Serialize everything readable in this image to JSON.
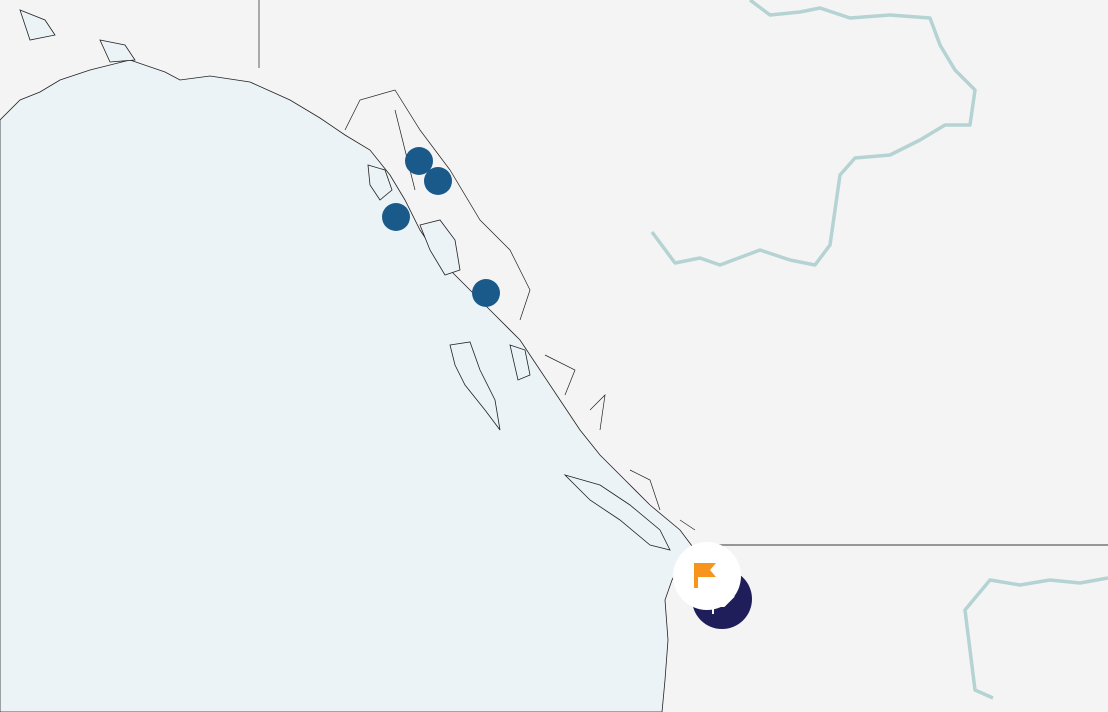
{
  "map": {
    "colors": {
      "land": "#f4f4f4",
      "water": "#ecf3f6",
      "coastline": "#222222",
      "border": "#777777",
      "river": "#b5d3d3",
      "marker": "#1a5a8a",
      "selected_marker": "#1f1d5a",
      "flag": "#f7941d"
    },
    "markers": [
      {
        "icon": "location-dot"
      },
      {
        "icon": "location-dot"
      },
      {
        "icon": "location-dot"
      },
      {
        "icon": "location-dot"
      }
    ],
    "selected_marker": {
      "icon": "maple-leaf-icon",
      "badge_icon": "flag-icon"
    }
  }
}
